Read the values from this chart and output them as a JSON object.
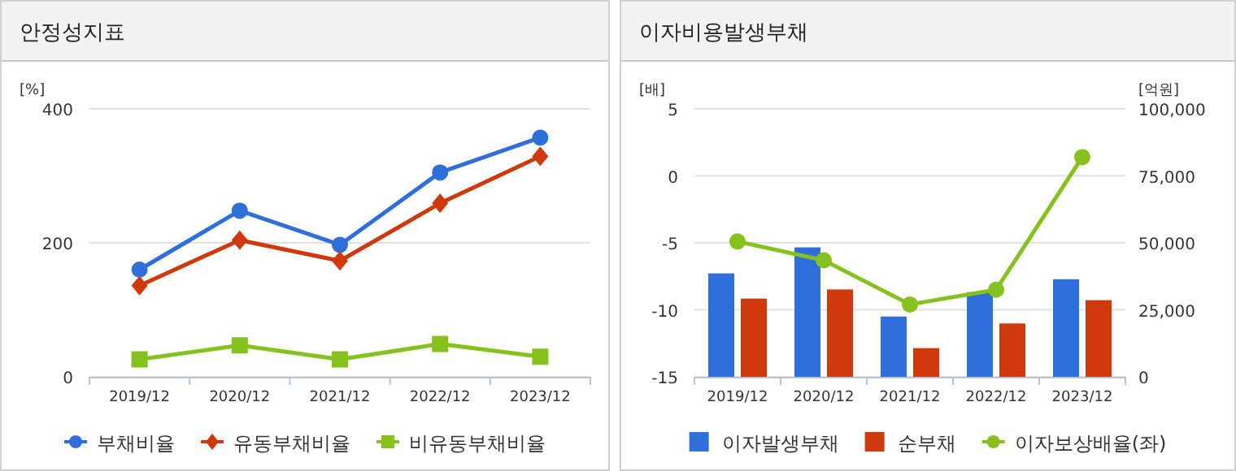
{
  "chart_data": [
    {
      "type": "line",
      "title": "안정성지표",
      "ylabel": "[%]",
      "categories": [
        "2019/12",
        "2020/12",
        "2021/12",
        "2022/12",
        "2023/12"
      ],
      "ylim": [
        0,
        400
      ],
      "yticks": [
        0,
        200,
        400
      ],
      "grid": "y",
      "legend": "bottom",
      "series": [
        {
          "name": "부채비율",
          "color": "#2f6fdc",
          "marker": "circle",
          "values": [
            160,
            248,
            197,
            305,
            357
          ]
        },
        {
          "name": "유동부채비율",
          "color": "#d0390c",
          "marker": "diamond",
          "values": [
            136,
            204,
            173,
            259,
            329
          ]
        },
        {
          "name": "비유동부채비율",
          "color": "#86c21e",
          "marker": "square",
          "values": [
            26,
            47,
            26,
            49,
            30
          ]
        }
      ]
    },
    {
      "type": "bar",
      "title": "이자비용발생부채",
      "ylabel": "[배]",
      "y2label": "[억원]",
      "categories": [
        "2019/12",
        "2020/12",
        "2021/12",
        "2022/12",
        "2023/12"
      ],
      "ylim": [
        -15,
        5
      ],
      "yticks": [
        -15,
        -10,
        -5,
        0,
        5
      ],
      "y2lim": [
        0,
        100000
      ],
      "y2ticks": [
        0,
        {
          "value": 25000,
          "label": "25,000"
        },
        {
          "value": 50000,
          "label": "50,000"
        },
        {
          "value": 75000,
          "label": "75,000"
        },
        {
          "value": 100000,
          "label": "100,000"
        }
      ],
      "grid": "y",
      "legend": "bottom",
      "series": [
        {
          "name": "이자발생부채",
          "axis": "y2",
          "color": "#2f6fdc",
          "values": [
            38600,
            48300,
            22500,
            31600,
            36400
          ]
        },
        {
          "name": "순부채",
          "axis": "y2",
          "color": "#d0390c",
          "values": [
            29200,
            32600,
            10700,
            19900,
            28600
          ]
        },
        {
          "name": "이자보상배율(좌)",
          "type": "line",
          "axis": "y",
          "color": "#86c21e",
          "marker": "circle",
          "values": [
            -4.9,
            -6.3,
            -9.6,
            -8.5,
            1.4
          ]
        }
      ]
    }
  ]
}
